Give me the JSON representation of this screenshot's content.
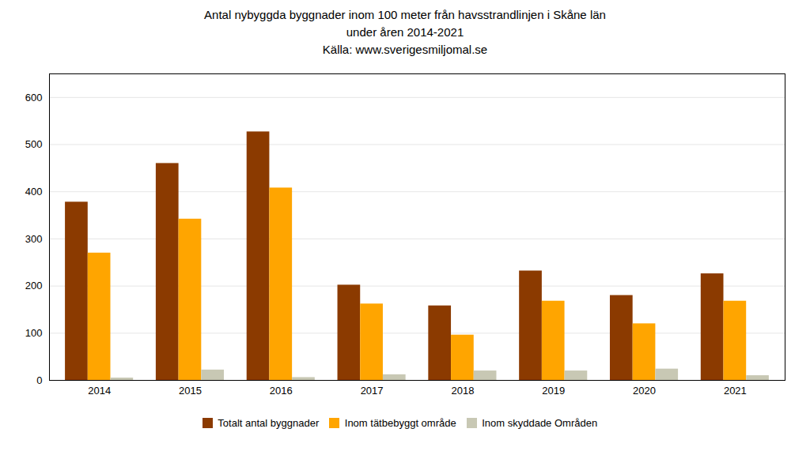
{
  "chart_data": {
    "type": "bar",
    "title": "Antal nybyggda byggnader inom 100 meter från havsstrandlinjen i Skåne län\nunder åren 2014-2021\nKälla: www.sverigesmiljomal.se",
    "categories": [
      "2014",
      "2015",
      "2016",
      "2017",
      "2018",
      "2019",
      "2020",
      "2021"
    ],
    "series": [
      {
        "name": "Totalt antal byggnader",
        "color": "#8B3A00",
        "values": [
          378,
          460,
          527,
          202,
          158,
          232,
          180,
          226
        ]
      },
      {
        "name": "Inom tätbebyggt område",
        "color": "#FFA500",
        "values": [
          270,
          342,
          408,
          162,
          96,
          168,
          120,
          168
        ]
      },
      {
        "name": "Inom skyddade Områden",
        "color": "#C8C8B4",
        "values": [
          5,
          22,
          6,
          12,
          20,
          20,
          24,
          10
        ]
      }
    ],
    "ylim": [
      0,
      650
    ],
    "yticks": [
      0,
      100,
      200,
      300,
      400,
      500,
      600
    ],
    "grid": true,
    "legend": "bottom"
  }
}
